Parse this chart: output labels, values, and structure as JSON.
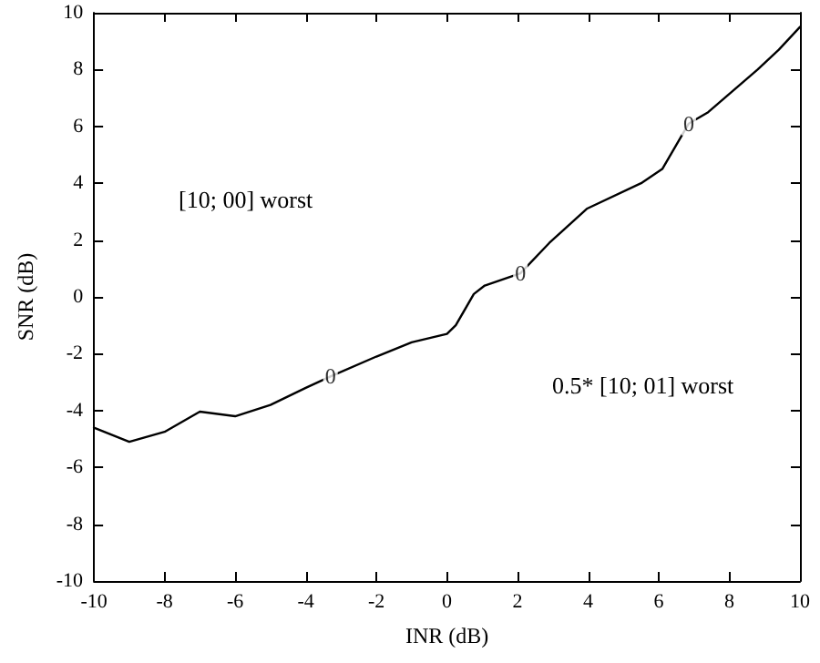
{
  "chart_data": {
    "type": "line",
    "xlabel": "INR (dB)",
    "ylabel": "SNR (dB)",
    "x": [
      -10,
      -9,
      -8,
      -7,
      -6,
      -5,
      -4,
      -3.3,
      -2,
      -1,
      0,
      0.25,
      0.76,
      1.07,
      2.08,
      2.9,
      3.96,
      5.5,
      6.1,
      6.85,
      7.4,
      8.8,
      9.4,
      10
    ],
    "series": [
      {
        "color": "#000000",
        "values": [
          -4.6,
          -5.1,
          -4.75,
          -4.04,
          -4.2,
          -3.8,
          -3.2,
          -2.8,
          -2.1,
          -1.6,
          -1.3,
          -1.0,
          0.1,
          0.4,
          0.83,
          1.9,
          3.1,
          4.0,
          4.5,
          6.1,
          6.5,
          8.0,
          8.7,
          9.5
        ]
      }
    ],
    "xlim": [
      -10,
      10
    ],
    "ylim": [
      -10,
      10
    ],
    "xticks": [
      -10,
      -8,
      -6,
      -4,
      -2,
      0,
      2,
      4,
      6,
      8,
      10
    ],
    "yticks": [
      -10,
      -8,
      -6,
      -4,
      -2,
      0,
      2,
      4,
      6,
      8,
      10
    ],
    "grid": false,
    "marker": "none",
    "line_style": "solid",
    "annotations": [
      {
        "text": "0",
        "x": -3.3,
        "y": -2.8
      },
      {
        "text": "0",
        "x": 2.08,
        "y": 0.83
      },
      {
        "text": "0",
        "x": 6.85,
        "y": 6.1
      },
      "[10; 00] worst",
      "0.5* [10; 01] worst"
    ]
  }
}
